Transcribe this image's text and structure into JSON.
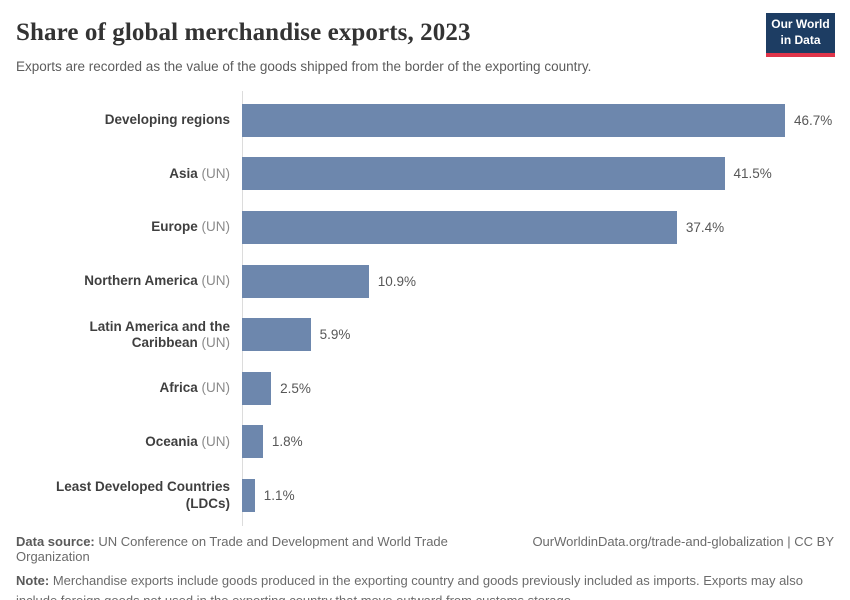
{
  "header": {
    "title": "Share of global merchandise exports, 2023",
    "subtitle": "Exports are recorded as the value of the goods shipped from the border of the exporting country.",
    "logo": {
      "line1": "Our World",
      "line2": "in Data"
    }
  },
  "chart_data": {
    "type": "bar",
    "orientation": "horizontal",
    "title": "Share of global merchandise exports, 2023",
    "xlabel": "",
    "ylabel": "",
    "unit": "%",
    "xlim": [
      0,
      50
    ],
    "grid": false,
    "legend": false,
    "categories": [
      "Developing regions",
      "Asia (UN)",
      "Europe (UN)",
      "Northern America (UN)",
      "Latin America and the Caribbean (UN)",
      "Africa (UN)",
      "Oceania (UN)",
      "Least Developed Countries (LDCs)"
    ],
    "values": [
      46.7,
      41.5,
      37.4,
      10.9,
      5.9,
      2.5,
      1.8,
      1.1
    ],
    "entities": [
      {
        "name": "Developing regions",
        "suffix": "",
        "value": 46.7,
        "value_label": "46.7%"
      },
      {
        "name": "Asia",
        "suffix": "(UN)",
        "value": 41.5,
        "value_label": "41.5%"
      },
      {
        "name": "Europe",
        "suffix": "(UN)",
        "value": 37.4,
        "value_label": "37.4%"
      },
      {
        "name": "Northern America",
        "suffix": "(UN)",
        "value": 10.9,
        "value_label": "10.9%"
      },
      {
        "name": "Latin America and the Caribbean",
        "suffix": "(UN)",
        "value": 5.9,
        "value_label": "5.9%"
      },
      {
        "name": "Africa",
        "suffix": "(UN)",
        "value": 2.5,
        "value_label": "2.5%"
      },
      {
        "name": "Oceania",
        "suffix": "(UN)",
        "value": 1.8,
        "value_label": "1.8%"
      },
      {
        "name": "Least Developed Countries (LDCs)",
        "suffix": "",
        "value": 1.1,
        "value_label": "1.1%"
      }
    ]
  },
  "footer": {
    "source_label": "Data source:",
    "source_text": "UN Conference on Trade and Development and World Trade Organization",
    "link_text": "OurWorldinData.org/trade-and-globalization | CC BY",
    "note_label": "Note:",
    "note_text": "Merchandise exports include goods produced in the exporting country and goods previously included as imports. Exports may also include foreign goods not used in the exporting country that move outward from customs storage."
  },
  "colors": {
    "bar": "#6d87ad",
    "logo_background": "#1d3d63",
    "logo_underline": "#e0354a",
    "axis_line": "#dcdcdc"
  }
}
